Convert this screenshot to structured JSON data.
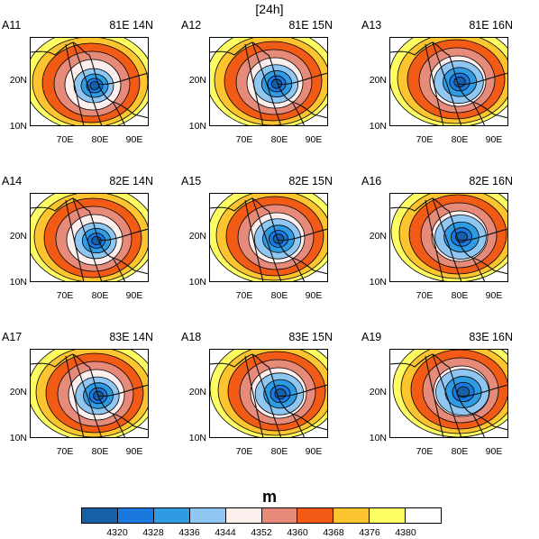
{
  "title": "[24h]",
  "units": "m",
  "colorbar": {
    "colors": [
      "#1660a8",
      "#1a78df",
      "#2e9be3",
      "#8fc7f2",
      "#fdeeee",
      "#e68a79",
      "#f25b16",
      "#fcc42e",
      "#fefe62",
      "#ffffff"
    ],
    "labels": [
      "4320",
      "4328",
      "4336",
      "4344",
      "4352",
      "4360",
      "4368",
      "4376",
      "4380"
    ]
  },
  "axes": {
    "y_labels": [
      "20N",
      "10N"
    ],
    "x_labels": [
      "70E",
      "80E",
      "90E"
    ]
  },
  "panels": [
    {
      "id": "A11",
      "lon_lat": "81E 14N"
    },
    {
      "id": "A12",
      "lon_lat": "81E 15N"
    },
    {
      "id": "A13",
      "lon_lat": "81E 16N"
    },
    {
      "id": "A14",
      "lon_lat": "82E 14N"
    },
    {
      "id": "A15",
      "lon_lat": "82E 15N"
    },
    {
      "id": "A16",
      "lon_lat": "82E 16N"
    },
    {
      "id": "A17",
      "lon_lat": "83E 14N"
    },
    {
      "id": "A18",
      "lon_lat": "83E 15N"
    },
    {
      "id": "A19",
      "lon_lat": "83E 16N"
    }
  ]
}
